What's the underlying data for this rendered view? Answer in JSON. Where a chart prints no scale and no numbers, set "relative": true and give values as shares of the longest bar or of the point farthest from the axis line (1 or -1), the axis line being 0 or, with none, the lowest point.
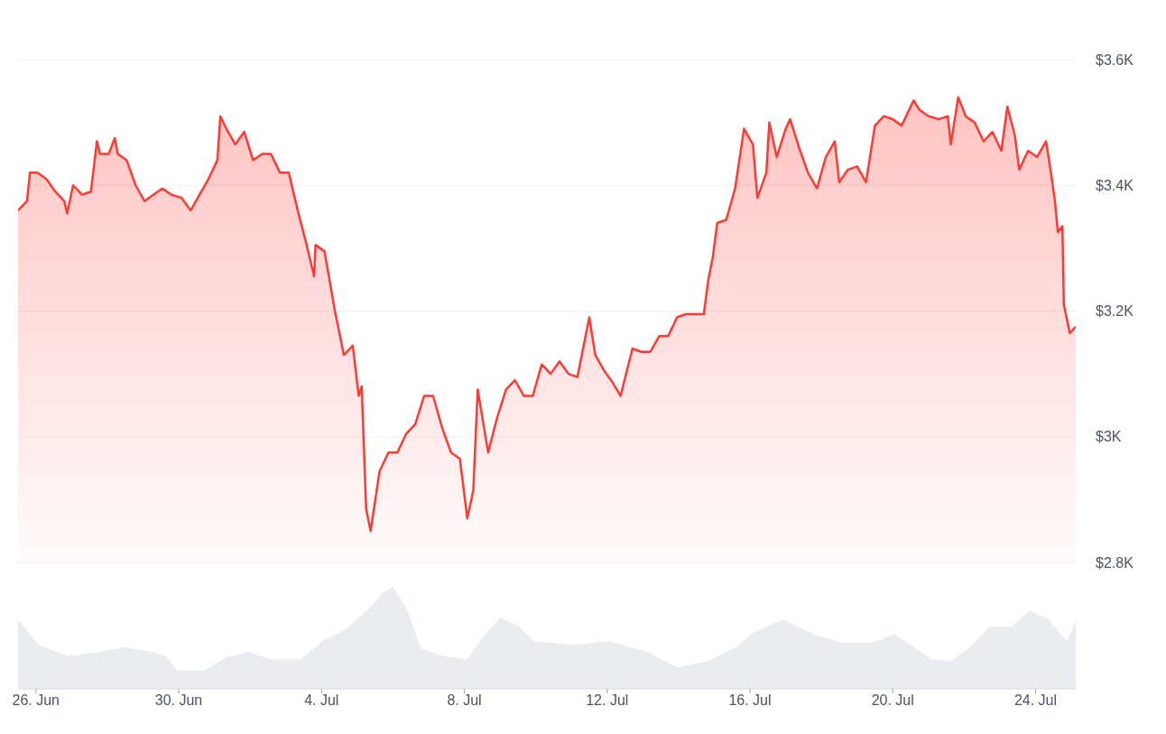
{
  "chart_data": [
    {
      "type": "area",
      "x": [
        "--06-25T12:00",
        "--06-25T18:00",
        "--06-25T20:00",
        "--06-26T01:00",
        "--06-26T07:00",
        "--06-26T13:00",
        "--06-26T19:00",
        "--06-26T21:00",
        "--06-27T01:00",
        "--06-27T07:00",
        "--06-27T13:00",
        "--06-27T17:00",
        "--06-27T19:00",
        "--06-28T01:00",
        "--06-28T05:00",
        "--06-28T07:00",
        "--06-28T13:00",
        "--06-28T19:00",
        "--06-29T01:00",
        "--06-29T07:00",
        "--06-29T13:00",
        "--06-29T19:00",
        "--06-30T02:00",
        "--06-30T08:00",
        "--06-30T14:00",
        "--06-30T20:00",
        "--07-01T02:00",
        "--07-01T04:00",
        "--07-01T08:00",
        "--07-01T14:00",
        "--07-01T20:00",
        "--07-02T02:00",
        "--07-02T08:00",
        "--07-02T14:00",
        "--07-02T20:00",
        "--07-03T02:00",
        "--07-03T08:00",
        "--07-03T14:00",
        "--07-03T19:00",
        "--07-03T20:00",
        "--07-04T02:00",
        "--07-04T09:00",
        "--07-04T15:00",
        "--07-04T21:00",
        "--07-05T01:00",
        "--07-05T03:00",
        "--07-05T06:00",
        "--07-05T09:00",
        "--07-05T15:00",
        "--07-05T21:00",
        "--07-06T03:00",
        "--07-06T09:00",
        "--07-06T15:00",
        "--07-06T21:00",
        "--07-07T03:00",
        "--07-07T09:00",
        "--07-07T15:00",
        "--07-07T21:00",
        "--07-08T02:00",
        "--07-08T06:00",
        "--07-08T09:00",
        "--07-08T16:00",
        "--07-08T22:00",
        "--07-09T04:00",
        "--07-09T10:00",
        "--07-09T16:00",
        "--07-09T22:00",
        "--07-10T04:00",
        "--07-10T10:00",
        "--07-10T16:00",
        "--07-10T22:00",
        "--07-11T04:00",
        "--07-11T12:00",
        "--07-11T16:00",
        "--07-11T22:00",
        "--07-12T04:00",
        "--07-12T09:00",
        "--07-12T17:00",
        "--07-12T23:00",
        "--07-13T05:00",
        "--07-13T11:00",
        "--07-13T17:00",
        "--07-13T23:00",
        "--07-14T05:00",
        "--07-14T11:00",
        "--07-14T17:00",
        "--07-14T20:00",
        "--07-14T23:00",
        "--07-15T02:00",
        "--07-15T08:00",
        "--07-15T14:00",
        "--07-15T20:00",
        "--07-16T02:00",
        "--07-16T05:00",
        "--07-16T11:00",
        "--07-16T13:00",
        "--07-16T18:00",
        "--07-17T00:00",
        "--07-17T03:00",
        "--07-17T09:00",
        "--07-17T15:00",
        "--07-17T21:00",
        "--07-18T03:00",
        "--07-18T09:00",
        "--07-18T12:00",
        "--07-18T18:00",
        "--07-19T00:00",
        "--07-19T06:00",
        "--07-19T12:00",
        "--07-19T18:00",
        "--07-20T00:00",
        "--07-20T06:00",
        "--07-20T14:00",
        "--07-20T18:00",
        "--07-21T00:00",
        "--07-21T07:00",
        "--07-21T13:00",
        "--07-21T15:00",
        "--07-21T20:00",
        "--07-22T01:00",
        "--07-22T07:00",
        "--07-22T13:00",
        "--07-22T19:00",
        "--07-23T01:00",
        "--07-23T05:00",
        "--07-23T10:00",
        "--07-23T13:00",
        "--07-23T19:00",
        "--07-24T01:00",
        "--07-24T07:00",
        "--07-24T10:00",
        "--07-24T13:00",
        "--07-24T15:00",
        "--07-24T18:00",
        "--07-24T19:00",
        "--07-24T23:00",
        "--07-25T03:00"
      ],
      "series": [
        {
          "color": "#ff3a33",
          "values": [
            3360,
            3375,
            3420,
            3420,
            3410,
            3390,
            3375,
            3355,
            3400,
            3385,
            3390,
            3470,
            3450,
            3450,
            3475,
            3450,
            3440,
            3400,
            3375,
            3385,
            3395,
            3385,
            3380,
            3360,
            3385,
            3410,
            3440,
            3510,
            3490,
            3465,
            3485,
            3440,
            3450,
            3450,
            3420,
            3420,
            3360,
            3305,
            3255,
            3305,
            3295,
            3200,
            3130,
            3145,
            3065,
            3080,
            2885,
            2850,
            2945,
            2975,
            2975,
            3005,
            3020,
            3065,
            3065,
            3015,
            2975,
            2965,
            2870,
            2915,
            3075,
            2975,
            3030,
            3075,
            3090,
            3065,
            3065,
            3115,
            3100,
            3120,
            3100,
            3095,
            3190,
            3130,
            3105,
            3085,
            3065,
            3140,
            3135,
            3135,
            3160,
            3160,
            3190,
            3195,
            3195,
            3195,
            3250,
            3285,
            3340,
            3345,
            3395,
            3490,
            3465,
            3380,
            3420,
            3500,
            3445,
            3490,
            3505,
            3460,
            3420,
            3395,
            3445,
            3470,
            3405,
            3425,
            3430,
            3405,
            3495,
            3510,
            3505,
            3495,
            3535,
            3520,
            3510,
            3505,
            3510,
            3465,
            3540,
            3510,
            3500,
            3470,
            3485,
            3455,
            3525,
            3480,
            3425,
            3455,
            3445,
            3470,
            3425,
            3375,
            3325,
            3335,
            3210,
            3165,
            3175
          ]
        }
      ],
      "xlim": [
        "--06-25T12:00",
        "--07-25T03:00"
      ],
      "ylim": [
        2800,
        3600
      ],
      "yticks": [
        {
          "value": 2800,
          "label": "$2.8K"
        },
        {
          "value": 3000,
          "label": "$3K"
        },
        {
          "value": 3200,
          "label": "$3.2K"
        },
        {
          "value": 3400,
          "label": "$3.4K"
        },
        {
          "value": 3600,
          "label": "$3.6K"
        }
      ],
      "grid": "y",
      "tick_labels": "y"
    },
    {
      "type": "area",
      "relative": true,
      "x": [
        "--06-25T12:00",
        "--06-26T02:00",
        "--06-26T22:00",
        "--06-27T18:00",
        "--06-28T11:00",
        "--06-29T06:00",
        "--06-29T15:00",
        "--06-29T23:00",
        "--06-30T17:00",
        "--07-01T08:00",
        "--07-01T23:00",
        "--07-02T14:00",
        "--07-03T10:00",
        "--07-04T01:00",
        "--07-04T16:00",
        "--07-05T08:00",
        "--07-05T18:00",
        "--07-06T00:00",
        "--07-06T09:00",
        "--07-06T19:00",
        "--07-07T10:00",
        "--07-08T02:00",
        "--07-08T11:00",
        "--07-09T00:00",
        "--07-09T13:00",
        "--07-09T23:00",
        "--07-11T00:00",
        "--07-12T01:00",
        "--07-13T03:00",
        "--07-13T23:00",
        "--07-14T19:00",
        "--07-15T15:00",
        "--07-16T01:00",
        "--07-16T22:00",
        "--07-17T18:00",
        "--07-18T14:00",
        "--07-19T10:00",
        "--07-20T01:00",
        "--07-20T17:00",
        "--07-21T02:00",
        "--07-21T15:00",
        "--07-22T04:00",
        "--07-22T17:00",
        "--07-23T08:00",
        "--07-23T20:00",
        "--07-24T09:00",
        "--07-24T21:00",
        "--07-25T03:00"
      ],
      "values": [
        0.68,
        0.43,
        0.32,
        0.36,
        0.41,
        0.36,
        0.32,
        0.18,
        0.18,
        0.31,
        0.36,
        0.29,
        0.29,
        0.47,
        0.58,
        0.79,
        0.95,
        1,
        0.79,
        0.39,
        0.32,
        0.29,
        0.48,
        0.7,
        0.61,
        0.47,
        0.43,
        0.47,
        0.36,
        0.21,
        0.27,
        0.41,
        0.54,
        0.68,
        0.54,
        0.45,
        0.45,
        0.54,
        0.38,
        0.29,
        0.27,
        0.41,
        0.61,
        0.61,
        0.77,
        0.68,
        0.47,
        0.67
      ],
      "color": "#e9edf1",
      "xlim": [
        "--06-25T12:00",
        "--07-25T03:00"
      ],
      "xticks": [
        {
          "value": "--06-26",
          "label": "26. Jun"
        },
        {
          "value": "--06-30",
          "label": "30. Jun"
        },
        {
          "value": "--07-04",
          "label": "4. Jul"
        },
        {
          "value": "--07-08",
          "label": "8. Jul"
        },
        {
          "value": "--07-12",
          "label": "12. Jul"
        },
        {
          "value": "--07-16",
          "label": "16. Jul"
        },
        {
          "value": "--07-20",
          "label": "20. Jul"
        },
        {
          "value": "--07-24",
          "label": "24. Jul"
        }
      ],
      "tick_labels": "x"
    }
  ]
}
